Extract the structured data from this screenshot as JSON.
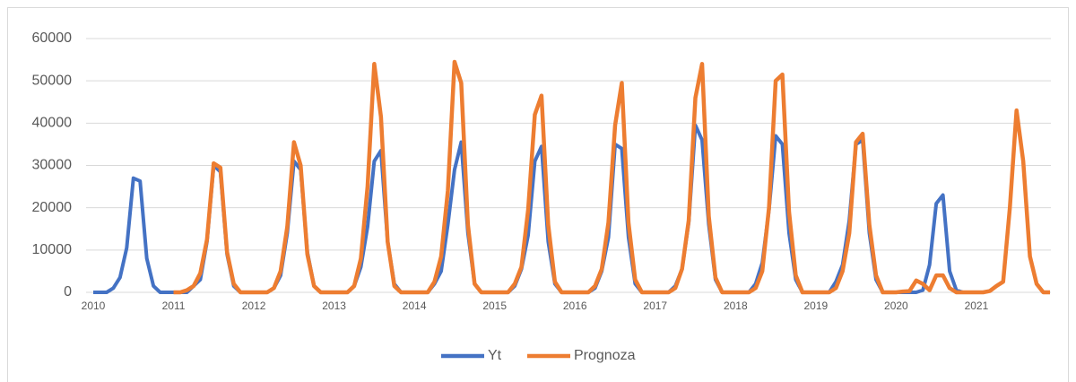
{
  "chart_data": {
    "type": "line",
    "categories": [
      "2010",
      null,
      null,
      null,
      null,
      null,
      null,
      null,
      null,
      null,
      null,
      null,
      "2011",
      null,
      null,
      null,
      null,
      null,
      null,
      null,
      null,
      null,
      null,
      null,
      "2012",
      null,
      null,
      null,
      null,
      null,
      null,
      null,
      null,
      null,
      null,
      null,
      "2013",
      null,
      null,
      null,
      null,
      null,
      null,
      null,
      null,
      null,
      null,
      null,
      "2014",
      null,
      null,
      null,
      null,
      null,
      null,
      null,
      null,
      null,
      null,
      null,
      "2015",
      null,
      null,
      null,
      null,
      null,
      null,
      null,
      null,
      null,
      null,
      null,
      "2016",
      null,
      null,
      null,
      null,
      null,
      null,
      null,
      null,
      null,
      null,
      null,
      "2017",
      null,
      null,
      null,
      null,
      null,
      null,
      null,
      null,
      null,
      null,
      null,
      "2018",
      null,
      null,
      null,
      null,
      null,
      null,
      null,
      null,
      null,
      null,
      null,
      "2019",
      null,
      null,
      null,
      null,
      null,
      null,
      null,
      null,
      null,
      null,
      null,
      "2020",
      null,
      null,
      null,
      null,
      null,
      null,
      null,
      null,
      null,
      null,
      null,
      "2021",
      null,
      null,
      null,
      null,
      null,
      null,
      null,
      null,
      null,
      null,
      null
    ],
    "series": [
      {
        "name": "Yt",
        "color": "#4472c4",
        "values": [
          0,
          0,
          0,
          1000,
          3500,
          10500,
          27000,
          26300,
          8000,
          1500,
          0,
          0,
          0,
          0,
          0,
          1500,
          3000,
          12000,
          30000,
          28500,
          9000,
          1500,
          0,
          0,
          0,
          0,
          0,
          1000,
          4000,
          14000,
          31000,
          29000,
          9500,
          1500,
          0,
          0,
          0,
          0,
          0,
          1500,
          6000,
          15500,
          31000,
          33500,
          12000,
          2000,
          0,
          0,
          0,
          0,
          0,
          2000,
          5000,
          16000,
          29000,
          35500,
          14000,
          2000,
          0,
          0,
          0,
          0,
          0,
          1500,
          5500,
          13500,
          31000,
          34500,
          12000,
          2000,
          0,
          0,
          0,
          0,
          0,
          1000,
          5000,
          13000,
          35000,
          34000,
          13000,
          2000,
          0,
          0,
          0,
          0,
          0,
          1500,
          5500,
          16500,
          39500,
          36000,
          16000,
          3000,
          0,
          0,
          0,
          0,
          0,
          2000,
          7000,
          19500,
          37000,
          35000,
          14000,
          3000,
          0,
          0,
          0,
          0,
          0,
          2500,
          6500,
          17000,
          35000,
          36000,
          14000,
          3000,
          0,
          0,
          0,
          0,
          0,
          0,
          500,
          6500,
          21000,
          23000,
          5000,
          500,
          0,
          0,
          null,
          null,
          null,
          null,
          null,
          null,
          null,
          null,
          null,
          null,
          null,
          null
        ]
      },
      {
        "name": "Prognoza",
        "color": "#ed7d31",
        "values": [
          null,
          null,
          null,
          null,
          null,
          null,
          null,
          null,
          null,
          null,
          null,
          null,
          0,
          0,
          500,
          1500,
          4500,
          12500,
          30500,
          29500,
          9500,
          2000,
          0,
          0,
          0,
          0,
          0,
          1000,
          5000,
          15500,
          35500,
          30000,
          9000,
          1500,
          0,
          0,
          0,
          0,
          0,
          1500,
          8000,
          25000,
          54000,
          41500,
          12000,
          1500,
          0,
          0,
          0,
          0,
          0,
          2500,
          8500,
          24000,
          54500,
          49500,
          16000,
          2000,
          0,
          0,
          0,
          0,
          0,
          2000,
          6000,
          19500,
          42000,
          46500,
          16000,
          2500,
          0,
          0,
          0,
          0,
          0,
          1500,
          5500,
          16500,
          39500,
          49500,
          16500,
          3000,
          0,
          0,
          0,
          0,
          0,
          1000,
          5500,
          17000,
          46000,
          54000,
          18000,
          3500,
          0,
          0,
          0,
          0,
          0,
          1000,
          5000,
          20000,
          50000,
          51500,
          19000,
          4000,
          0,
          0,
          0,
          0,
          0,
          1000,
          5000,
          14000,
          35500,
          37500,
          16000,
          4000,
          0,
          0,
          0,
          200,
          300,
          2800,
          2000,
          500,
          4000,
          4000,
          1000,
          0,
          0,
          0,
          0,
          0,
          300,
          1500,
          2500,
          20000,
          43000,
          31000,
          8500,
          2000,
          0,
          0
        ]
      }
    ],
    "ylim": [
      0,
      60000
    ],
    "yticks": [
      0,
      10000,
      20000,
      30000,
      40000,
      50000,
      60000
    ],
    "grid": true,
    "legend": "bottom"
  }
}
